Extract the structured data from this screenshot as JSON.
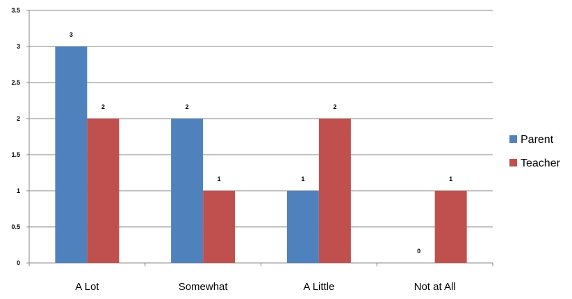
{
  "chart_data": {
    "type": "bar",
    "title": "",
    "xlabel": "",
    "ylabel": "",
    "categories": [
      "A Lot",
      "Somewhat",
      "A Little",
      "Not at All"
    ],
    "series": [
      {
        "name": "Parent",
        "values": [
          3,
          2,
          1,
          0
        ],
        "color": "#4f81bd"
      },
      {
        "name": "Teacher",
        "values": [
          2,
          1,
          2,
          1
        ],
        "color": "#c0504d"
      }
    ],
    "ylim": [
      0,
      3.5
    ],
    "yticks": [
      "0",
      "0.5",
      "1",
      "1.5",
      "2",
      "2.5",
      "3",
      "3.5"
    ],
    "data_labels": true,
    "grid": true,
    "legend_position": "right"
  }
}
